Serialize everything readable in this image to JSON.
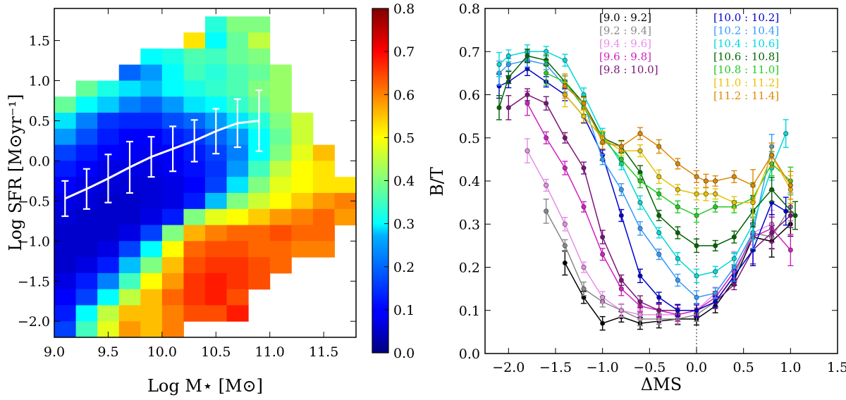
{
  "chart_data": [
    {
      "type": "heatmap",
      "xlabel": "Log M⋆ [M⊙]",
      "ylabel": "Log SFR [M⊙yr⁻¹]",
      "xlim": [
        9.0,
        11.8
      ],
      "ylim": [
        -2.2,
        1.9
      ],
      "xticks": [
        "9.0",
        "9.5",
        "10.0",
        "10.5",
        "11.0",
        "11.5"
      ],
      "yticks": [
        "−2.0",
        "−1.5",
        "−1.0",
        "−0.5",
        "0.0",
        "0.5",
        "1.0",
        "1.5"
      ],
      "colorbar": {
        "range": [
          0.0,
          0.8
        ],
        "ticks": [
          "0.0",
          "0.1",
          "0.2",
          "0.3",
          "0.4",
          "0.5",
          "0.6",
          "0.7",
          "0.8"
        ],
        "colormap": "jet"
      },
      "cells": {
        "x_bin_width": 0.2,
        "y_bin_width": 0.2,
        "rows": [
          {
            "y": 1.7,
            "x0": 10.5,
            "values": [
              0.33,
              0.4,
              0.4
            ]
          },
          {
            "y": 1.5,
            "x0": 10.3,
            "values": [
              0.52,
              0.3,
              0.38,
              0.45
            ]
          },
          {
            "y": 1.3,
            "x0": 9.9,
            "values": [
              0.3,
              0.32,
              0.36,
              0.35,
              0.38,
              0.4
            ]
          },
          {
            "y": 1.1,
            "x0": 9.7,
            "values": [
              0.18,
              0.22,
              0.3,
              0.35,
              0.33,
              0.36,
              0.38,
              0.42
            ]
          },
          {
            "y": 0.9,
            "x0": 9.3,
            "values": [
              0.38,
              0.32,
              0.28,
              0.25,
              0.3,
              0.32,
              0.34,
              0.36,
              0.4,
              0.42
            ]
          },
          {
            "y": 0.7,
            "x0": 9.1,
            "values": [
              0.38,
              0.3,
              0.26,
              0.2,
              0.18,
              0.22,
              0.28,
              0.3,
              0.34,
              0.38,
              0.42
            ]
          },
          {
            "y": 0.5,
            "x0": 9.1,
            "values": [
              0.28,
              0.2,
              0.14,
              0.13,
              0.13,
              0.16,
              0.18,
              0.22,
              0.28,
              0.33,
              0.4,
              0.46
            ]
          },
          {
            "y": 0.3,
            "x0": 9.1,
            "values": [
              0.22,
              0.16,
              0.12,
              0.1,
              0.1,
              0.12,
              0.14,
              0.18,
              0.22,
              0.3,
              0.38,
              0.46
            ]
          },
          {
            "y": 0.1,
            "x0": 9.1,
            "values": [
              0.15,
              0.12,
              0.1,
              0.09,
              0.09,
              0.1,
              0.12,
              0.15,
              0.2,
              0.3,
              0.4,
              0.48,
              0.55
            ]
          },
          {
            "y": -0.1,
            "x0": 9.1,
            "values": [
              0.12,
              0.1,
              0.08,
              0.08,
              0.08,
              0.09,
              0.11,
              0.14,
              0.22,
              0.35,
              0.45,
              0.5,
              0.52
            ]
          },
          {
            "y": -0.3,
            "x0": 9.1,
            "values": [
              0.1,
              0.08,
              0.07,
              0.07,
              0.07,
              0.08,
              0.1,
              0.15,
              0.28,
              0.4,
              0.48,
              0.5,
              0.52,
              0.52
            ]
          },
          {
            "y": -0.5,
            "x0": 9.1,
            "values": [
              0.08,
              0.07,
              0.06,
              0.06,
              0.07,
              0.08,
              0.12,
              0.25,
              0.4,
              0.46,
              0.5,
              0.54,
              0.58,
              0.6
            ]
          },
          {
            "y": -0.7,
            "x0": 9.1,
            "values": [
              0.07,
              0.06,
              0.06,
              0.06,
              0.08,
              0.12,
              0.4,
              0.48,
              0.5,
              0.54,
              0.58,
              0.6,
              0.62,
              0.58
            ]
          },
          {
            "y": -0.9,
            "x0": 9.1,
            "values": [
              0.06,
              0.06,
              0.06,
              0.08,
              0.15,
              0.4,
              0.56,
              0.6,
              0.62,
              0.62,
              0.64,
              0.62,
              0.62
            ]
          },
          {
            "y": -1.1,
            "x0": 9.1,
            "values": [
              0.06,
              0.06,
              0.08,
              0.15,
              0.3,
              0.5,
              0.62,
              0.64,
              0.64,
              0.62,
              0.62,
              0.6,
              0.6
            ]
          },
          {
            "y": -1.3,
            "x0": 9.1,
            "values": [
              0.06,
              0.08,
              0.12,
              0.25,
              0.4,
              0.55,
              0.64,
              0.66,
              0.66,
              0.64,
              0.62
            ]
          },
          {
            "y": -1.5,
            "x0": 9.1,
            "values": [
              0.08,
              0.12,
              0.2,
              0.35,
              0.5,
              0.58,
              0.66,
              0.68,
              0.66,
              0.64
            ]
          },
          {
            "y": -1.7,
            "x0": 9.1,
            "values": [
              0.1,
              0.15,
              0.3,
              0.45,
              0.55,
              0.62,
              0.66,
              0.68,
              0.64
            ]
          },
          {
            "y": -1.9,
            "x0": 9.1,
            "values": [
              0.12,
              0.3,
              0.45,
              0.55,
              0.55,
              0.6,
              0.64,
              0.64,
              0.68
            ]
          },
          {
            "y": -2.1,
            "x0": 9.1,
            "values": [
              0.15,
              0.35,
              0.48,
              0.58,
              0.55,
              0.6
            ]
          }
        ]
      },
      "series": [
        {
          "x": [
            9.1,
            9.3,
            9.5,
            9.7,
            9.9,
            10.1,
            10.3,
            10.5,
            10.7,
            10.9
          ],
          "y": [
            -0.47,
            -0.35,
            -0.22,
            -0.08,
            0.05,
            0.15,
            0.25,
            0.37,
            0.47,
            0.5
          ],
          "err": [
            0.22,
            0.25,
            0.3,
            0.32,
            0.25,
            0.28,
            0.26,
            0.28,
            0.3,
            0.38
          ],
          "color": "#ffffff"
        }
      ]
    },
    {
      "type": "line",
      "xlabel": "ΔMS",
      "ylabel": "B/T",
      "xlim": [
        -2.25,
        1.5
      ],
      "ylim": [
        0.0,
        0.8
      ],
      "xticks": [
        "−2.0",
        "−1.5",
        "−1.0",
        "−0.5",
        "0.0",
        "0.5",
        "1.0",
        "1.5"
      ],
      "yticks": [
        "0.0",
        "0.1",
        "0.2",
        "0.3",
        "0.4",
        "0.5",
        "0.6",
        "0.7",
        "0.8"
      ],
      "vline": 0.0,
      "series": [
        {
          "name": "[9.0 : 9.2]",
          "color": "#000000",
          "x": [
            -1.4,
            -1.2,
            -1.0,
            -0.8,
            -0.6,
            -0.4,
            -0.2,
            0.0,
            0.2,
            0.4,
            0.6,
            0.8,
            1.0
          ],
          "y": [
            0.21,
            0.13,
            0.07,
            0.085,
            0.07,
            0.075,
            0.08,
            0.08,
            0.11,
            0.17,
            0.27,
            0.26,
            0.3
          ]
        },
        {
          "name": "[9.2 : 9.4]",
          "color": "#888888",
          "x": [
            -1.6,
            -1.4,
            -1.2,
            -1.0,
            -0.8,
            -0.6,
            -0.4,
            -0.2,
            0.0,
            0.2,
            0.4,
            0.6,
            0.8,
            1.0
          ],
          "y": [
            0.33,
            0.25,
            0.15,
            0.12,
            0.1,
            0.08,
            0.08,
            0.08,
            0.09,
            0.12,
            0.18,
            0.28,
            0.27,
            0.34
          ]
        },
        {
          "name": "[9.4 : 9.6]",
          "color": "#e78ee7",
          "x": [
            -1.8,
            -1.6,
            -1.4,
            -1.2,
            -1.0,
            -0.8,
            -0.6,
            -0.4,
            -0.2,
            0.0,
            0.2,
            0.4,
            0.6,
            0.8
          ],
          "y": [
            0.47,
            0.39,
            0.3,
            0.2,
            0.13,
            0.1,
            0.09,
            0.09,
            0.09,
            0.1,
            0.14,
            0.2,
            0.28,
            0.3
          ]
        },
        {
          "name": "[9.6 : 9.8]",
          "color": "#d020c0",
          "x": [
            -1.8,
            -1.6,
            -1.4,
            -1.2,
            -1.0,
            -0.8,
            -0.6,
            -0.4,
            -0.2,
            0.0,
            0.2,
            0.4,
            0.6,
            0.8,
            1.0
          ],
          "y": [
            0.58,
            0.5,
            0.43,
            0.34,
            0.23,
            0.15,
            0.11,
            0.1,
            0.09,
            0.1,
            0.13,
            0.19,
            0.27,
            0.29,
            0.24
          ]
        },
        {
          "name": "[9.8 : 10.0]",
          "color": "#7a127a",
          "x": [
            -2.0,
            -1.8,
            -1.6,
            -1.4,
            -1.2,
            -1.0,
            -0.8,
            -0.6,
            -0.4,
            -0.2,
            0.0,
            0.2,
            0.4,
            0.6,
            0.8,
            1.0
          ],
          "y": [
            0.57,
            0.6,
            0.58,
            0.5,
            0.43,
            0.27,
            0.17,
            0.12,
            0.1,
            0.1,
            0.1,
            0.12,
            0.16,
            0.24,
            0.28,
            0.32
          ]
        },
        {
          "name": "[10.0 : 10.2]",
          "color": "#0000cc",
          "x": [
            -2.1,
            -2.0,
            -1.8,
            -1.6,
            -1.4,
            -1.2,
            -1.0,
            -0.8,
            -0.6,
            -0.4,
            -0.2,
            0.0,
            0.2,
            0.4,
            0.6,
            0.8,
            0.95
          ],
          "y": [
            0.62,
            0.63,
            0.66,
            0.63,
            0.6,
            0.55,
            0.46,
            0.32,
            0.18,
            0.13,
            0.1,
            0.1,
            0.12,
            0.18,
            0.24,
            0.35,
            0.33
          ]
        },
        {
          "name": "[10.2 : 10.4]",
          "color": "#3399ff",
          "x": [
            -2.1,
            -2.0,
            -1.8,
            -1.6,
            -1.4,
            -1.2,
            -1.0,
            -0.8,
            -0.6,
            -0.4,
            -0.2,
            0.0,
            0.2,
            0.4,
            0.6,
            0.8
          ],
          "y": [
            0.65,
            0.67,
            0.68,
            0.67,
            0.62,
            0.58,
            0.45,
            0.38,
            0.29,
            0.23,
            0.17,
            0.13,
            0.14,
            0.2,
            0.28,
            0.48
          ]
        },
        {
          "name": "[10.4 : 10.6]",
          "color": "#00d8d8",
          "x": [
            -2.1,
            -2.0,
            -1.8,
            -1.6,
            -1.4,
            -1.2,
            -1.0,
            -0.8,
            -0.6,
            -0.4,
            -0.2,
            0.0,
            0.2,
            0.4,
            0.6,
            0.8,
            0.95
          ],
          "y": [
            0.67,
            0.69,
            0.7,
            0.7,
            0.68,
            0.6,
            0.51,
            0.44,
            0.35,
            0.28,
            0.22,
            0.18,
            0.19,
            0.22,
            0.3,
            0.43,
            0.51
          ]
        },
        {
          "name": "[10.6 : 10.8]",
          "color": "#006400",
          "x": [
            -2.1,
            -2.0,
            -1.8,
            -1.6,
            -1.4,
            -1.2,
            -1.0,
            -0.8,
            -0.6,
            -0.4,
            -0.2,
            0.0,
            0.2,
            0.4,
            0.6,
            0.8,
            1.05
          ],
          "y": [
            0.57,
            0.64,
            0.69,
            0.68,
            0.63,
            0.58,
            0.5,
            0.48,
            0.42,
            0.32,
            0.28,
            0.25,
            0.25,
            0.27,
            0.33,
            0.38,
            0.32
          ]
        },
        {
          "name": "[10.8 : 11.0]",
          "color": "#22cc22",
          "x": [
            -1.6,
            -1.4,
            -1.2,
            -1.0,
            -0.8,
            -0.6,
            -0.4,
            -0.2,
            0.0,
            0.2,
            0.4,
            0.6,
            0.8,
            1.0
          ],
          "y": [
            0.65,
            0.63,
            0.57,
            0.5,
            0.45,
            0.4,
            0.37,
            0.34,
            0.32,
            0.34,
            0.34,
            0.36,
            0.44,
            0.4
          ]
        },
        {
          "name": "[11.0 : 11.2]",
          "color": "#e6c200",
          "x": [
            -1.4,
            -1.2,
            -1.0,
            -0.8,
            -0.6,
            -0.4,
            -0.2,
            0.0,
            0.1,
            0.2,
            0.4,
            0.6,
            0.8,
            1.0
          ],
          "y": [
            0.6,
            0.55,
            0.5,
            0.47,
            0.47,
            0.41,
            0.38,
            0.37,
            0.37,
            0.37,
            0.35,
            0.35,
            0.46,
            0.38
          ]
        },
        {
          "name": "[11.2 : 11.4]",
          "color": "#dd8800",
          "x": [
            -1.4,
            -1.2,
            -1.0,
            -0.8,
            -0.6,
            -0.4,
            -0.2,
            0.0,
            0.1,
            0.2,
            0.4,
            0.6,
            0.8,
            1.0
          ],
          "y": [
            0.62,
            0.58,
            0.49,
            0.48,
            0.51,
            0.48,
            0.44,
            0.41,
            0.4,
            0.4,
            0.41,
            0.39,
            0.46,
            0.39
          ]
        }
      ]
    }
  ]
}
